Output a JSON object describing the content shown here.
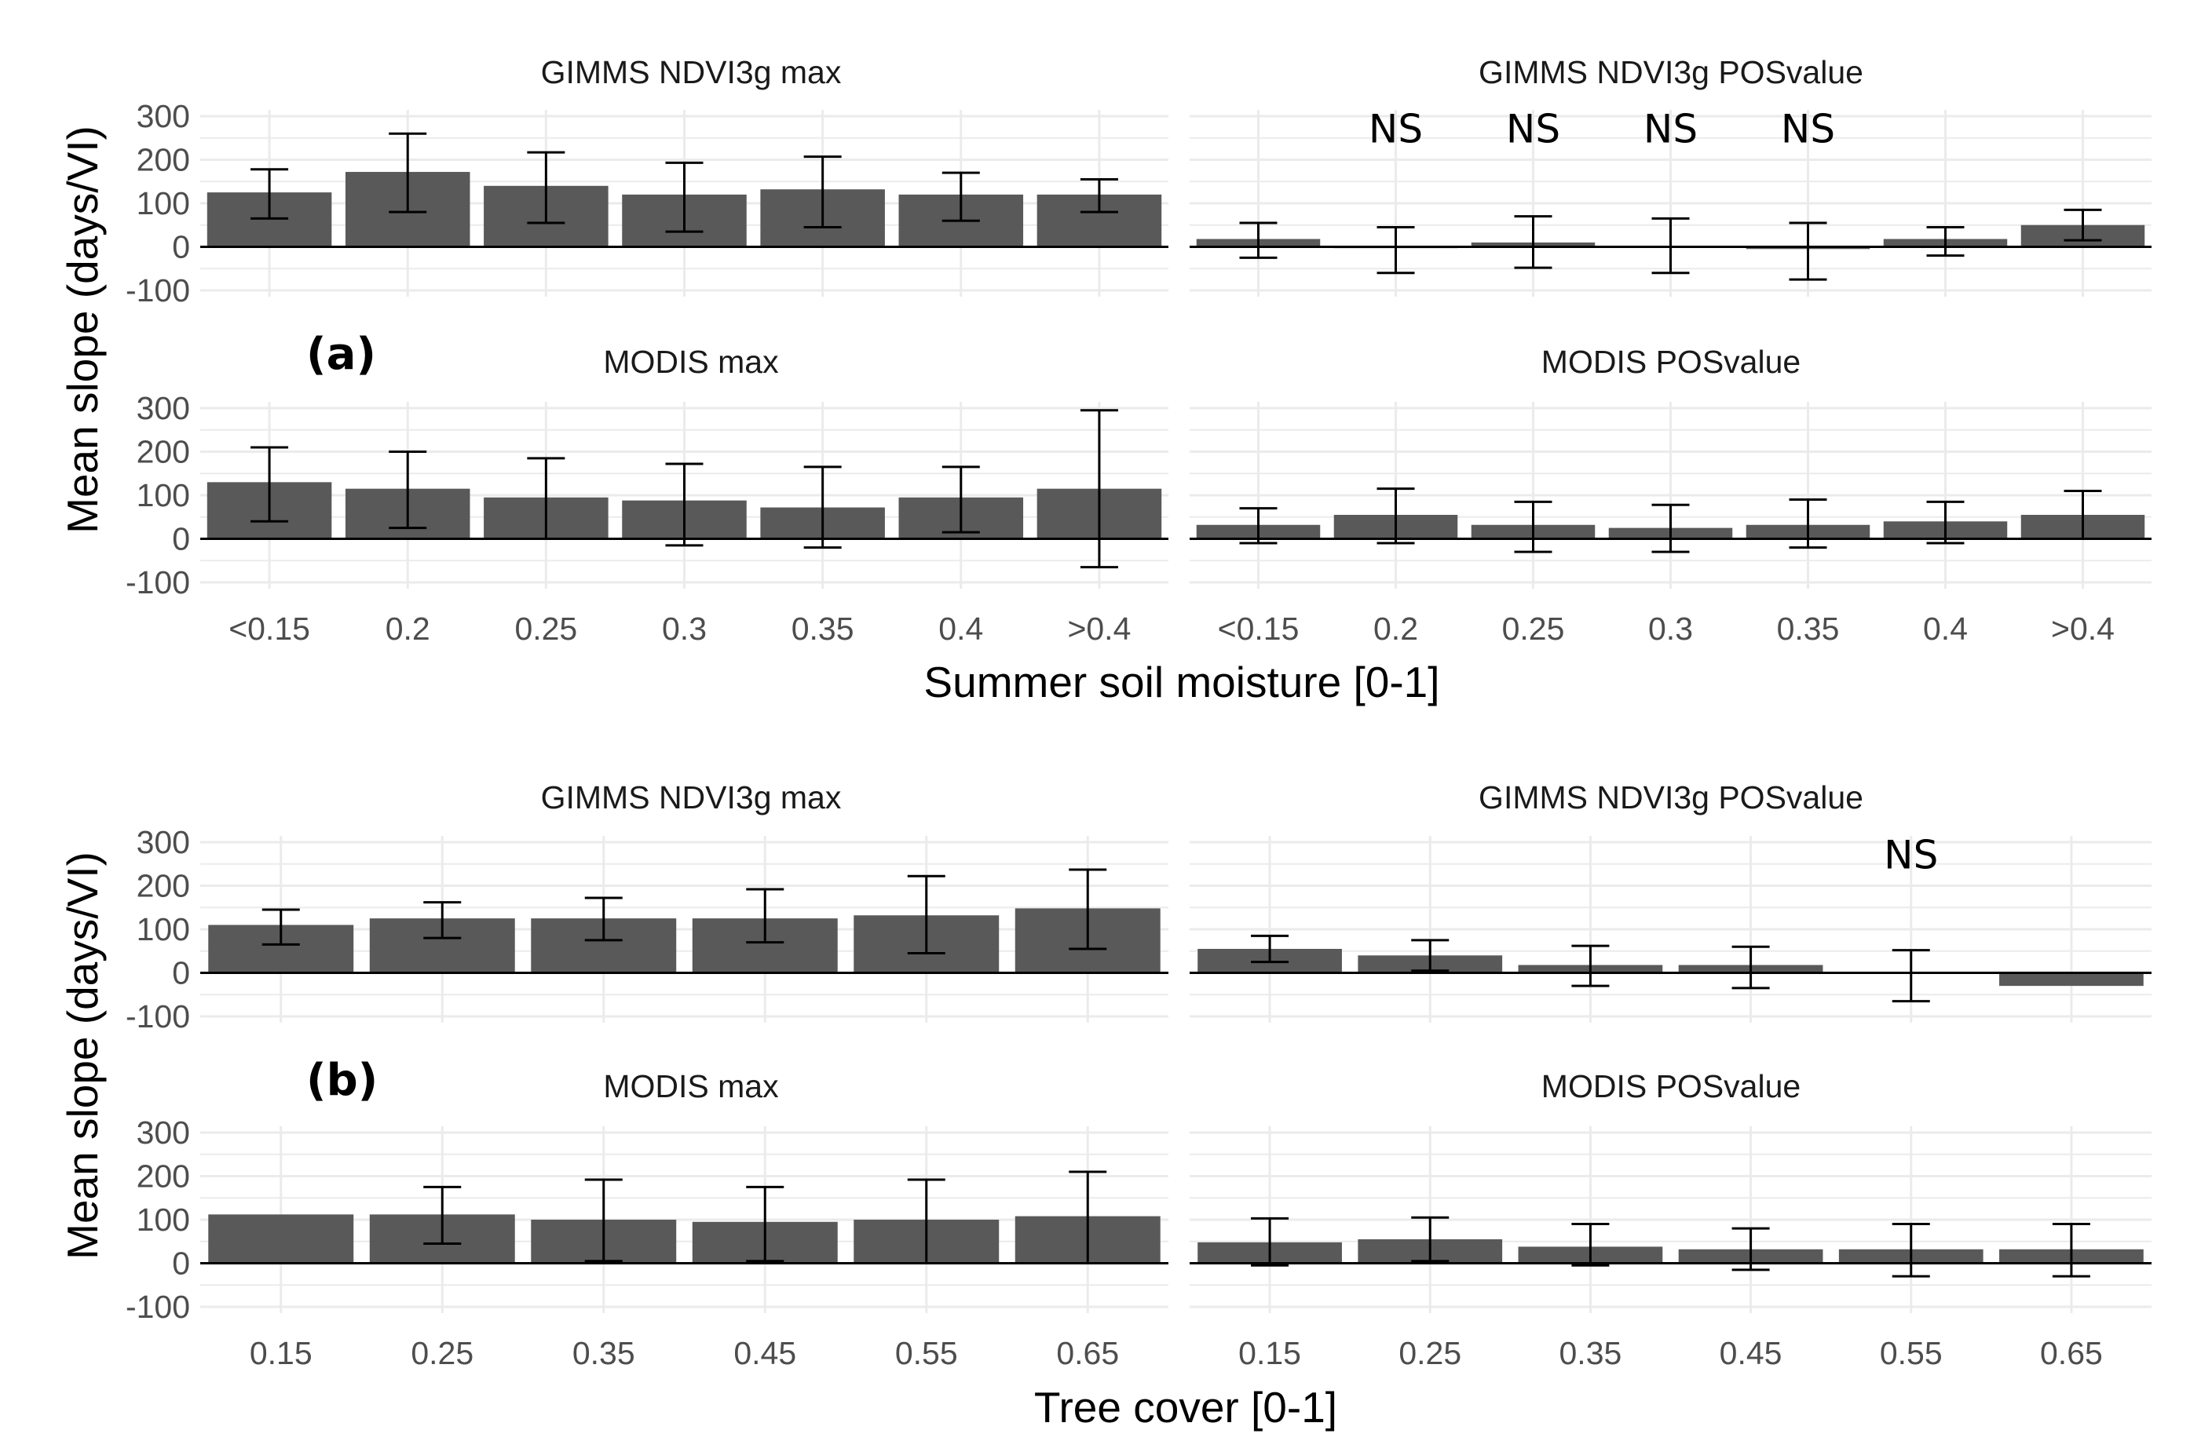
{
  "colors": {
    "bar": "#595959",
    "grid": "#ebebeb",
    "axis": "#000000",
    "errorbar": "#000000"
  },
  "chart_data": [
    {
      "group": "a",
      "tag": "(a)",
      "type": "bar",
      "xlabel": "Summer soil moisture [0-1]",
      "ylabel": "Mean slope (days/VI)",
      "categories": [
        "<0.15",
        "0.2",
        "0.25",
        "0.3",
        "0.35",
        "0.4",
        ">0.4"
      ],
      "yticks": [
        "300",
        "200",
        "100",
        "0",
        "-100"
      ],
      "ylim": [
        -100,
        300
      ],
      "panels": [
        {
          "title": "GIMMS NDVI3g max",
          "values": [
            125,
            172,
            140,
            120,
            132,
            120,
            120
          ],
          "err_low": [
            65,
            80,
            55,
            35,
            45,
            60,
            80
          ],
          "err_high": [
            178,
            260,
            217,
            193,
            207,
            170,
            155
          ],
          "ns": [
            "",
            "",
            "",
            "",
            "",
            "",
            ""
          ]
        },
        {
          "title": "GIMMS NDVI3g POSvalue",
          "values": [
            18,
            -3,
            10,
            0,
            -5,
            18,
            50
          ],
          "err_low": [
            -25,
            -60,
            -48,
            -60,
            -75,
            -20,
            15
          ],
          "err_high": [
            55,
            45,
            70,
            65,
            55,
            45,
            85
          ],
          "ns": [
            "",
            "NS",
            "NS",
            "NS",
            "NS",
            "",
            ""
          ]
        },
        {
          "title": "MODIS max",
          "values": [
            130,
            115,
            95,
            88,
            72,
            95,
            115
          ],
          "err_low": [
            40,
            25,
            0,
            -15,
            -20,
            15,
            -65
          ],
          "err_high": [
            210,
            200,
            185,
            172,
            165,
            165,
            295
          ],
          "ns": [
            "",
            "",
            "",
            "",
            "",
            "",
            ""
          ]
        },
        {
          "title": "MODIS POSvalue",
          "values": [
            32,
            55,
            32,
            25,
            32,
            40,
            55
          ],
          "err_low": [
            -10,
            -10,
            -30,
            -30,
            -20,
            -10,
            0
          ],
          "err_high": [
            70,
            115,
            85,
            78,
            90,
            85,
            110
          ],
          "ns": [
            "",
            "",
            "",
            "",
            "",
            "",
            ""
          ]
        }
      ]
    },
    {
      "group": "b",
      "tag": "(b)",
      "type": "bar",
      "xlabel": "Tree cover [0-1]",
      "ylabel": "Mean slope (days/VI)",
      "categories": [
        "0.15",
        "0.25",
        "0.35",
        "0.45",
        "0.55",
        "0.65"
      ],
      "yticks": [
        "300",
        "200",
        "100",
        "0",
        "-100"
      ],
      "ylim": [
        -100,
        300
      ],
      "panels": [
        {
          "title": "GIMMS NDVI3g max",
          "values": [
            110,
            125,
            125,
            125,
            132,
            148
          ],
          "err_low": [
            65,
            80,
            75,
            70,
            45,
            55
          ],
          "err_high": [
            145,
            162,
            172,
            192,
            222,
            237
          ],
          "ns": [
            "",
            "",
            "",
            "",
            "",
            ""
          ]
        },
        {
          "title": "GIMMS NDVI3g POSvalue",
          "values": [
            55,
            40,
            18,
            18,
            0,
            -30
          ],
          "err_low": [
            25,
            5,
            -30,
            -35,
            -65,
            -30
          ],
          "err_high": [
            85,
            75,
            62,
            60,
            52,
            -30
          ],
          "ns": [
            "",
            "",
            "",
            "",
            "NS",
            ""
          ]
        },
        {
          "title": "MODIS max",
          "values": [
            112,
            112,
            100,
            95,
            100,
            108
          ],
          "err_low": [
            112,
            45,
            5,
            5,
            0,
            0
          ],
          "err_high": [
            112,
            175,
            192,
            175,
            192,
            210
          ],
          "ns": [
            "",
            "",
            "",
            "",
            "",
            ""
          ]
        },
        {
          "title": "MODIS POSvalue",
          "values": [
            48,
            55,
            38,
            32,
            32,
            32
          ],
          "err_low": [
            -5,
            5,
            -5,
            -15,
            -30,
            -30
          ],
          "err_high": [
            103,
            105,
            90,
            80,
            90,
            90
          ],
          "ns": [
            "",
            "",
            "",
            "",
            "",
            ""
          ]
        }
      ]
    }
  ]
}
